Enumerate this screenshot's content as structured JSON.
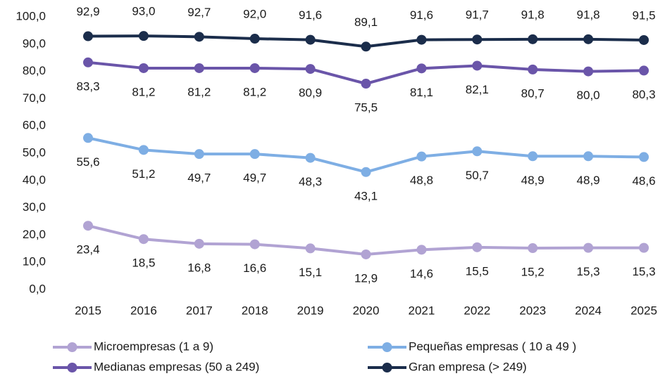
{
  "chart_data": {
    "type": "line",
    "categories": [
      "2015",
      "2016",
      "2017",
      "2018",
      "2019",
      "2020",
      "2021",
      "2022",
      "2023",
      "2024",
      "2025"
    ],
    "series": [
      {
        "name": "Microempresas (1 a 9)",
        "color": "#b1a3d3",
        "values": [
          23.4,
          18.5,
          16.8,
          16.6,
          15.1,
          12.9,
          14.6,
          15.5,
          15.2,
          15.3,
          15.3
        ],
        "value_labels": [
          "23,4",
          "18,5",
          "16,8",
          "16,6",
          "15,1",
          "12,9",
          "14,6",
          "15,5",
          "15,2",
          "15,3",
          "15,3"
        ]
      },
      {
        "name": "Pequeñas empresas ( 10 a 49 )",
        "color": "#7eaee4",
        "values": [
          55.6,
          51.2,
          49.7,
          49.7,
          48.3,
          43.1,
          48.8,
          50.7,
          48.9,
          48.9,
          48.6
        ],
        "value_labels": [
          "55,6",
          "51,2",
          "49,7",
          "49,7",
          "48,3",
          "43,1",
          "48,8",
          "50,7",
          "48,9",
          "48,9",
          "48,6"
        ]
      },
      {
        "name": "Medianas empresas (50 a 249)",
        "color": "#6a55a9",
        "values": [
          83.3,
          81.2,
          81.2,
          81.2,
          80.9,
          75.5,
          81.1,
          82.1,
          80.7,
          80.0,
          80.3
        ],
        "value_labels": [
          "83,3",
          "81,2",
          "81,2",
          "81,2",
          "80,9",
          "75,5",
          "81,1",
          "82,1",
          "80,7",
          "80,0",
          "80,3"
        ]
      },
      {
        "name": "Gran empresa (> 249)",
        "color": "#1b2d4b",
        "values": [
          92.9,
          93.0,
          92.7,
          92.0,
          91.6,
          89.1,
          91.6,
          91.7,
          91.8,
          91.8,
          91.5
        ],
        "value_labels": [
          "92,9",
          "93,0",
          "92,7",
          "92,0",
          "91,6",
          "89,1",
          "91,6",
          "91,7",
          "91,8",
          "91,8",
          "91,5"
        ]
      }
    ],
    "ylim": [
      0,
      100
    ],
    "yticks": [
      {
        "value": 0,
        "label": "0,0"
      },
      {
        "value": 10,
        "label": "10,0"
      },
      {
        "value": 20,
        "label": "20,0"
      },
      {
        "value": 30,
        "label": "30,0"
      },
      {
        "value": 40,
        "label": "40,0"
      },
      {
        "value": 50,
        "label": "50,0"
      },
      {
        "value": 60,
        "label": "60,0"
      },
      {
        "value": 70,
        "label": "70,0"
      },
      {
        "value": 80,
        "label": "80,0"
      },
      {
        "value": 90,
        "label": "90,0"
      },
      {
        "value": 100,
        "label": "100,0"
      }
    ],
    "grid": false,
    "legend": "bottom"
  }
}
